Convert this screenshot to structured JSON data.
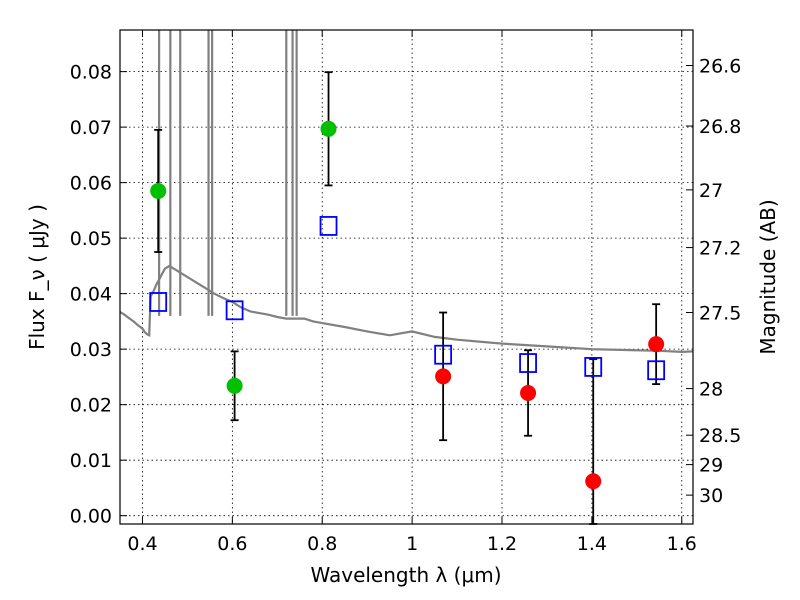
{
  "chart_data": {
    "type": "scatter",
    "xlabel": "Wavelength  λ (μm)",
    "ylabel": "Flux  F_ν  ( μJy )",
    "ylabel_right": "Magnitude (AB)",
    "xlim": [
      0.35,
      1.625
    ],
    "ylim": [
      -0.0015,
      0.0875
    ],
    "grid": true,
    "x_ticks": [
      {
        "value": 0.4,
        "label": "0.4"
      },
      {
        "value": 0.6,
        "label": "0.6"
      },
      {
        "value": 0.8,
        "label": "0.8"
      },
      {
        "value": 1.0,
        "label": "1"
      },
      {
        "value": 1.2,
        "label": "1.2"
      },
      {
        "value": 1.4,
        "label": "1.4"
      },
      {
        "value": 1.6,
        "label": "1.6"
      }
    ],
    "y_ticks": [
      {
        "value": 0.0,
        "label": "0.00"
      },
      {
        "value": 0.01,
        "label": "0.01"
      },
      {
        "value": 0.02,
        "label": "0.02"
      },
      {
        "value": 0.03,
        "label": "0.03"
      },
      {
        "value": 0.04,
        "label": "0.04"
      },
      {
        "value": 0.05,
        "label": "0.05"
      },
      {
        "value": 0.06,
        "label": "0.06"
      },
      {
        "value": 0.07,
        "label": "0.07"
      },
      {
        "value": 0.08,
        "label": "0.08"
      }
    ],
    "y_right_ticks": [
      {
        "label": "26.6",
        "flux": 0.0811
      },
      {
        "label": "26.8",
        "flux": 0.0702
      },
      {
        "label": "27",
        "flux": 0.0587
      },
      {
        "label": "27.2",
        "flux": 0.0483
      },
      {
        "label": "27.5",
        "flux": 0.0366
      },
      {
        "label": "28",
        "flux": 0.0229
      },
      {
        "label": "28.5",
        "flux": 0.0145
      },
      {
        "label": "29",
        "flux": 0.0092
      },
      {
        "label": "30",
        "flux": 0.0037
      }
    ],
    "series": [
      {
        "color": "#00c000",
        "marker": "circle",
        "points": [
          {
            "x": 0.435,
            "y": 0.0585,
            "err": 0.011
          },
          {
            "x": 0.605,
            "y": 0.0234,
            "err": 0.0062
          },
          {
            "x": 0.814,
            "y": 0.0697,
            "err": 0.0102
          }
        ]
      },
      {
        "color": "#ff0000",
        "marker": "circle",
        "points": [
          {
            "x": 1.069,
            "y": 0.0251,
            "err": 0.0115
          },
          {
            "x": 1.258,
            "y": 0.0221,
            "err": 0.0077
          },
          {
            "x": 1.403,
            "y": 0.0062,
            "err": 0.022
          },
          {
            "x": 1.543,
            "y": 0.0309,
            "err": 0.0072
          }
        ]
      },
      {
        "color": "#0000ff",
        "marker": "open-square",
        "points": [
          {
            "x": 0.435,
            "y": 0.0385
          },
          {
            "x": 0.605,
            "y": 0.037
          },
          {
            "x": 0.814,
            "y": 0.0522
          },
          {
            "x": 1.069,
            "y": 0.029
          },
          {
            "x": 1.258,
            "y": 0.0275
          },
          {
            "x": 1.403,
            "y": 0.0268
          },
          {
            "x": 1.543,
            "y": 0.0262
          }
        ]
      }
    ],
    "model_spectrum": {
      "color": "#808080",
      "points": [
        [
          0.35,
          0.0367
        ],
        [
          0.36,
          0.0362
        ],
        [
          0.37,
          0.0356
        ],
        [
          0.38,
          0.035
        ],
        [
          0.39,
          0.0343
        ],
        [
          0.4,
          0.0337
        ],
        [
          0.405,
          0.0331
        ],
        [
          0.41,
          0.0327
        ],
        [
          0.415,
          0.0325
        ],
        [
          0.418,
          0.0395
        ],
        [
          0.425,
          0.0405
        ],
        [
          0.43,
          0.0415
        ],
        [
          0.44,
          0.043
        ],
        [
          0.45,
          0.0445
        ],
        [
          0.46,
          0.045
        ],
        [
          0.47,
          0.0445
        ],
        [
          0.48,
          0.044
        ],
        [
          0.5,
          0.043
        ],
        [
          0.52,
          0.042
        ],
        [
          0.54,
          0.041
        ],
        [
          0.56,
          0.04
        ],
        [
          0.58,
          0.0392
        ],
        [
          0.6,
          0.0385
        ],
        [
          0.62,
          0.0375
        ],
        [
          0.64,
          0.0368
        ],
        [
          0.66,
          0.0365
        ],
        [
          0.68,
          0.0362
        ],
        [
          0.7,
          0.0358
        ],
        [
          0.72,
          0.0355
        ],
        [
          0.76,
          0.0355
        ],
        [
          0.78,
          0.035
        ],
        [
          0.8,
          0.0347
        ],
        [
          0.85,
          0.034
        ],
        [
          0.9,
          0.0332
        ],
        [
          0.95,
          0.0325
        ],
        [
          1.0,
          0.0332
        ],
        [
          1.05,
          0.0322
        ],
        [
          1.1,
          0.0317
        ],
        [
          1.2,
          0.031
        ],
        [
          1.3,
          0.0305
        ],
        [
          1.4,
          0.03
        ],
        [
          1.5,
          0.0298
        ],
        [
          1.55,
          0.0297
        ],
        [
          1.6,
          0.0295
        ],
        [
          1.625,
          0.0296
        ]
      ],
      "spikes": [
        0.437,
        0.462,
        0.484,
        0.547,
        0.555,
        0.72,
        0.734,
        0.743
      ]
    }
  }
}
